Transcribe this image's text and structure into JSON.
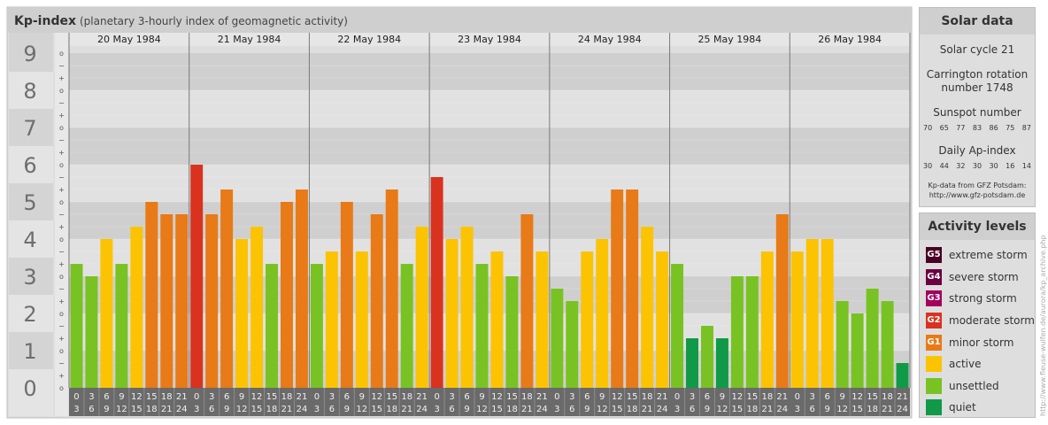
{
  "header": {
    "title": "Kp-index",
    "subtitle": "(planetary 3-hourly index of geomagnetic activity)"
  },
  "chart_data": {
    "type": "bar",
    "ylim": [
      0,
      9
    ],
    "y_ticks": [
      "0",
      "1",
      "2",
      "3",
      "4",
      "5",
      "6",
      "7",
      "8",
      "9"
    ],
    "minor_tick_labels": [
      "o",
      "+",
      "−"
    ],
    "days": [
      "20 May 1984",
      "21 May 1984",
      "22 May 1984",
      "23 May 1984",
      "24 May 1984",
      "25 May 1984",
      "26 May 1984"
    ],
    "interval_starts": [
      "0",
      "3",
      "6",
      "9",
      "12",
      "15",
      "18",
      "21"
    ],
    "interval_ends": [
      "3",
      "6",
      "9",
      "12",
      "15",
      "18",
      "21",
      "24"
    ],
    "values": [
      3.333,
      3.0,
      4.0,
      3.333,
      4.333,
      5.0,
      4.667,
      4.667,
      6.0,
      4.667,
      5.333,
      4.0,
      4.333,
      3.333,
      5.0,
      5.333,
      3.333,
      3.667,
      5.0,
      3.667,
      4.667,
      5.333,
      3.333,
      4.333,
      5.667,
      4.0,
      4.333,
      3.333,
      3.667,
      3.0,
      4.667,
      3.667,
      2.667,
      2.333,
      3.667,
      4.0,
      5.333,
      5.333,
      4.333,
      3.667,
      3.333,
      1.333,
      1.667,
      1.333,
      3.0,
      3.0,
      3.667,
      4.667,
      3.667,
      4.0,
      4.0,
      2.333,
      2.0,
      2.667,
      2.333,
      0.667
    ],
    "level_colors": {
      "quiet": "#109a47",
      "unsettled": "#79c223",
      "active": "#fbc302",
      "minor_storm": "#e87a17",
      "moderate_storm": "#d9321f",
      "strong_storm": "#a3005e",
      "severe_storm": "#6b0042",
      "extreme_storm": "#4a0024"
    }
  },
  "solar": {
    "title": "Solar data",
    "cycle": "Solar cycle 21",
    "carrington_label": "Carrington rotation",
    "carrington_number": "number 1748",
    "sunspot_label": "Sunspot number",
    "sunspot_values": [
      "70",
      "65",
      "77",
      "83",
      "86",
      "75",
      "87"
    ],
    "ap_label": "Daily Ap-index",
    "ap_values": [
      "30",
      "44",
      "32",
      "30",
      "30",
      "16",
      "14"
    ],
    "credit_line1": "Kp-data from GFZ Potsdam:",
    "credit_line2": "http://www.gfz-potsdam.de"
  },
  "activity": {
    "title": "Activity levels",
    "levels": [
      {
        "badge": "G5",
        "label": "extreme storm",
        "color": "#4a0024"
      },
      {
        "badge": "G4",
        "label": "severe storm",
        "color": "#6b0042"
      },
      {
        "badge": "G3",
        "label": "strong storm",
        "color": "#a3005e"
      },
      {
        "badge": "G2",
        "label": "moderate storm",
        "color": "#d9321f"
      },
      {
        "badge": "G1",
        "label": "minor storm",
        "color": "#e87a17"
      },
      {
        "badge": "",
        "label": "active",
        "color": "#fbc302"
      },
      {
        "badge": "",
        "label": "unsettled",
        "color": "#79c223"
      },
      {
        "badge": "",
        "label": "quiet",
        "color": "#109a47"
      }
    ]
  },
  "footer": {
    "vertical_credit": "http://www.fleuse-wulfen.de/aurora/kp_archive.php"
  }
}
